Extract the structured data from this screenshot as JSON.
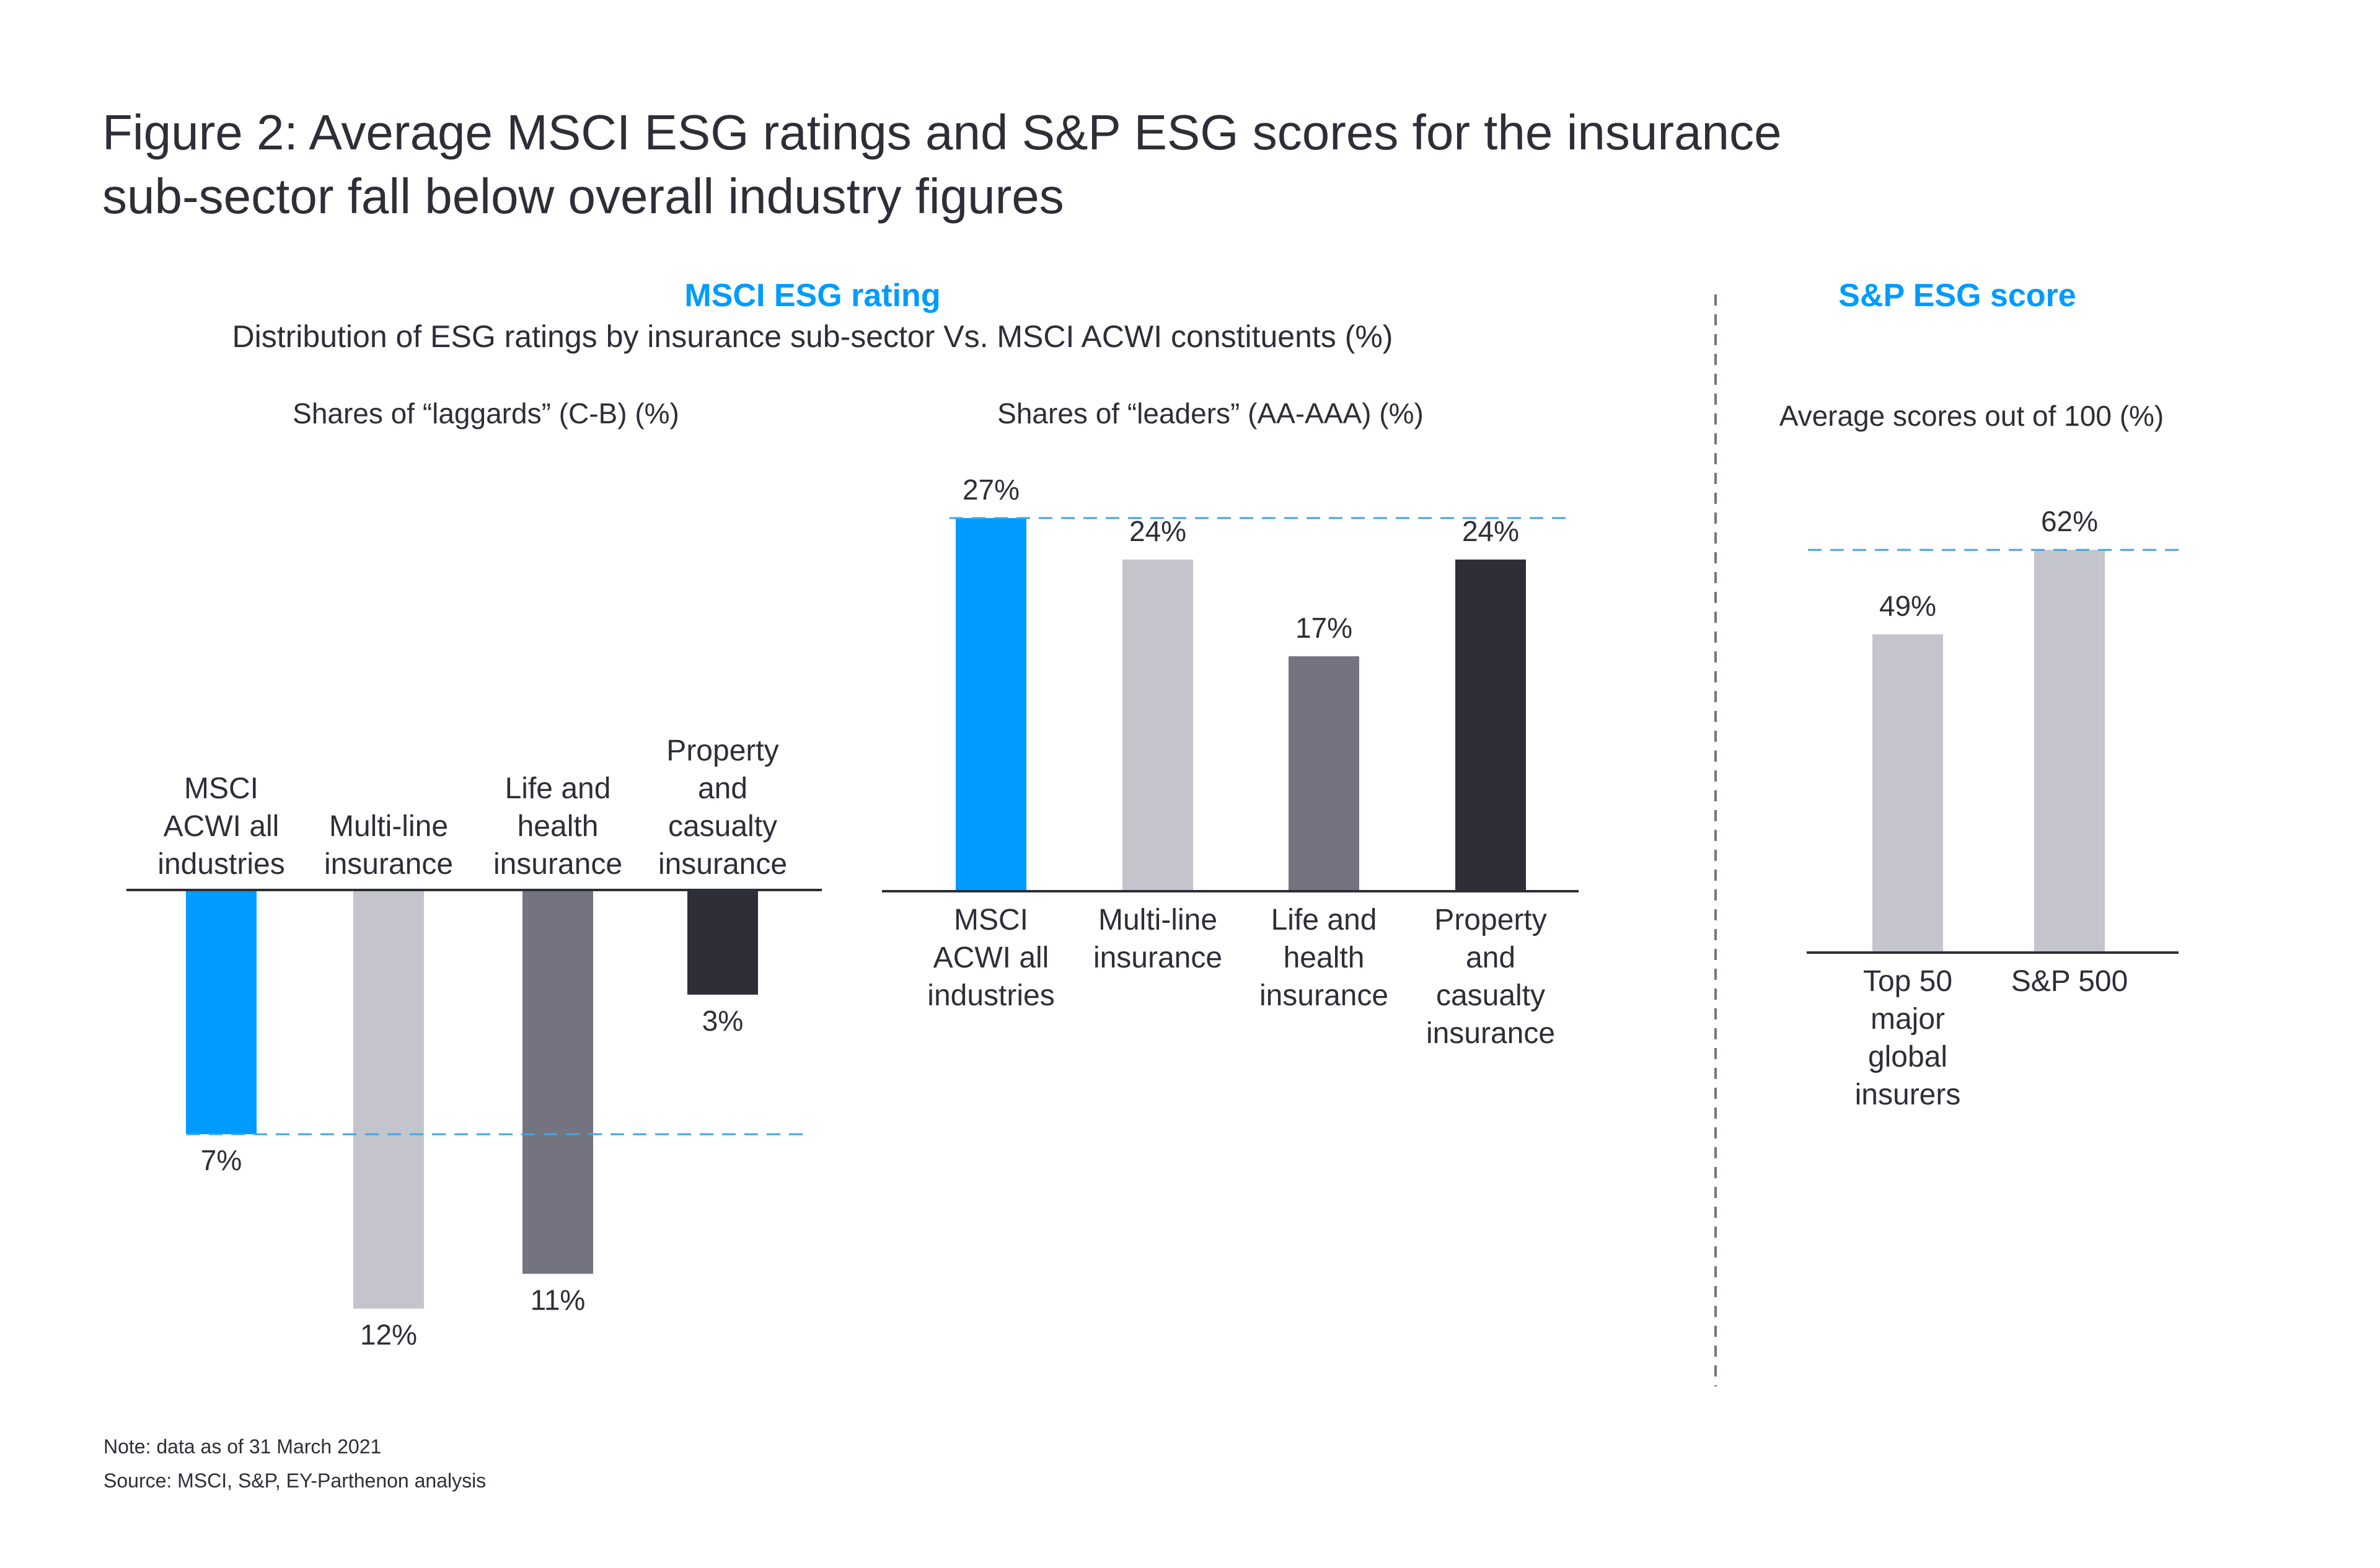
{
  "title_lines": [
    "Figure 2: Average MSCI ESG ratings and S&P ESG scores for the insurance",
    "sub-sector fall below overall industry figures"
  ],
  "msci_section": {
    "heading": "MSCI ESG rating",
    "subtitle": "Distribution of ESG ratings by insurance sub-sector Vs. MSCI ACWI constituents (%)"
  },
  "sp_section": {
    "heading": "S&P ESG score"
  },
  "footer": {
    "note": "Note: data as of 31 March 2021",
    "source": "Source: MSCI, S&P, EY-Parthenon analysis"
  },
  "colors": {
    "accent_blue": "#009BFF",
    "light_gray": "#C4C4CD",
    "mid_gray": "#747480",
    "dark": "#2E2E38",
    "reference_line": "#3AA8F0"
  },
  "chart_data": [
    {
      "id": "laggards",
      "type": "bar",
      "orientation": "downward",
      "title": "Shares of “laggards” (C-B) (%)",
      "categories": [
        [
          "MSCI",
          "ACWI all",
          "industries"
        ],
        [
          "Multi-line",
          "insurance"
        ],
        [
          "Life and",
          "health",
          "insurance"
        ],
        [
          "Property",
          "and",
          "casualty",
          "insurance"
        ]
      ],
      "values": [
        7,
        12,
        11,
        3
      ],
      "value_labels": [
        "7%",
        "12%",
        "11%",
        "3%"
      ],
      "bar_colors": [
        "#009BFF",
        "#C4C4CD",
        "#747480",
        "#2E2E38"
      ],
      "reference_line": {
        "value": 7,
        "style": "dashed"
      },
      "category_labels_position": "above-axis",
      "xlabel": "",
      "ylabel": "",
      "grid": false
    },
    {
      "id": "leaders",
      "type": "bar",
      "orientation": "upward",
      "title": "Shares of “leaders” (AA-AAA) (%)",
      "categories": [
        [
          "MSCI",
          "ACWI all",
          "industries"
        ],
        [
          "Multi-line",
          "insurance"
        ],
        [
          "Life and",
          "health",
          "insurance"
        ],
        [
          "Property",
          "and",
          "casualty",
          "insurance"
        ]
      ],
      "values": [
        27,
        24,
        17,
        24
      ],
      "value_labels": [
        "27%",
        "24%",
        "17%",
        "24%"
      ],
      "bar_colors": [
        "#009BFF",
        "#C4C4CD",
        "#747480",
        "#2E2E38"
      ],
      "reference_line": {
        "value": 27,
        "style": "dashed"
      },
      "category_labels_position": "below-axis",
      "xlabel": "",
      "ylabel": "",
      "grid": false
    },
    {
      "id": "sp_scores",
      "type": "bar",
      "orientation": "upward",
      "title": "Average scores out of 100 (%)",
      "categories": [
        [
          "Top 50",
          "major",
          "global",
          "insurers"
        ],
        [
          "S&P 500"
        ]
      ],
      "values": [
        49,
        62
      ],
      "value_labels": [
        "49%",
        "62%"
      ],
      "bar_colors": [
        "#C4C4CD",
        "#C4C4CD"
      ],
      "reference_line": {
        "value": 62,
        "style": "dashed"
      },
      "category_labels_position": "below-axis",
      "xlabel": "",
      "ylabel": "",
      "grid": false
    }
  ]
}
